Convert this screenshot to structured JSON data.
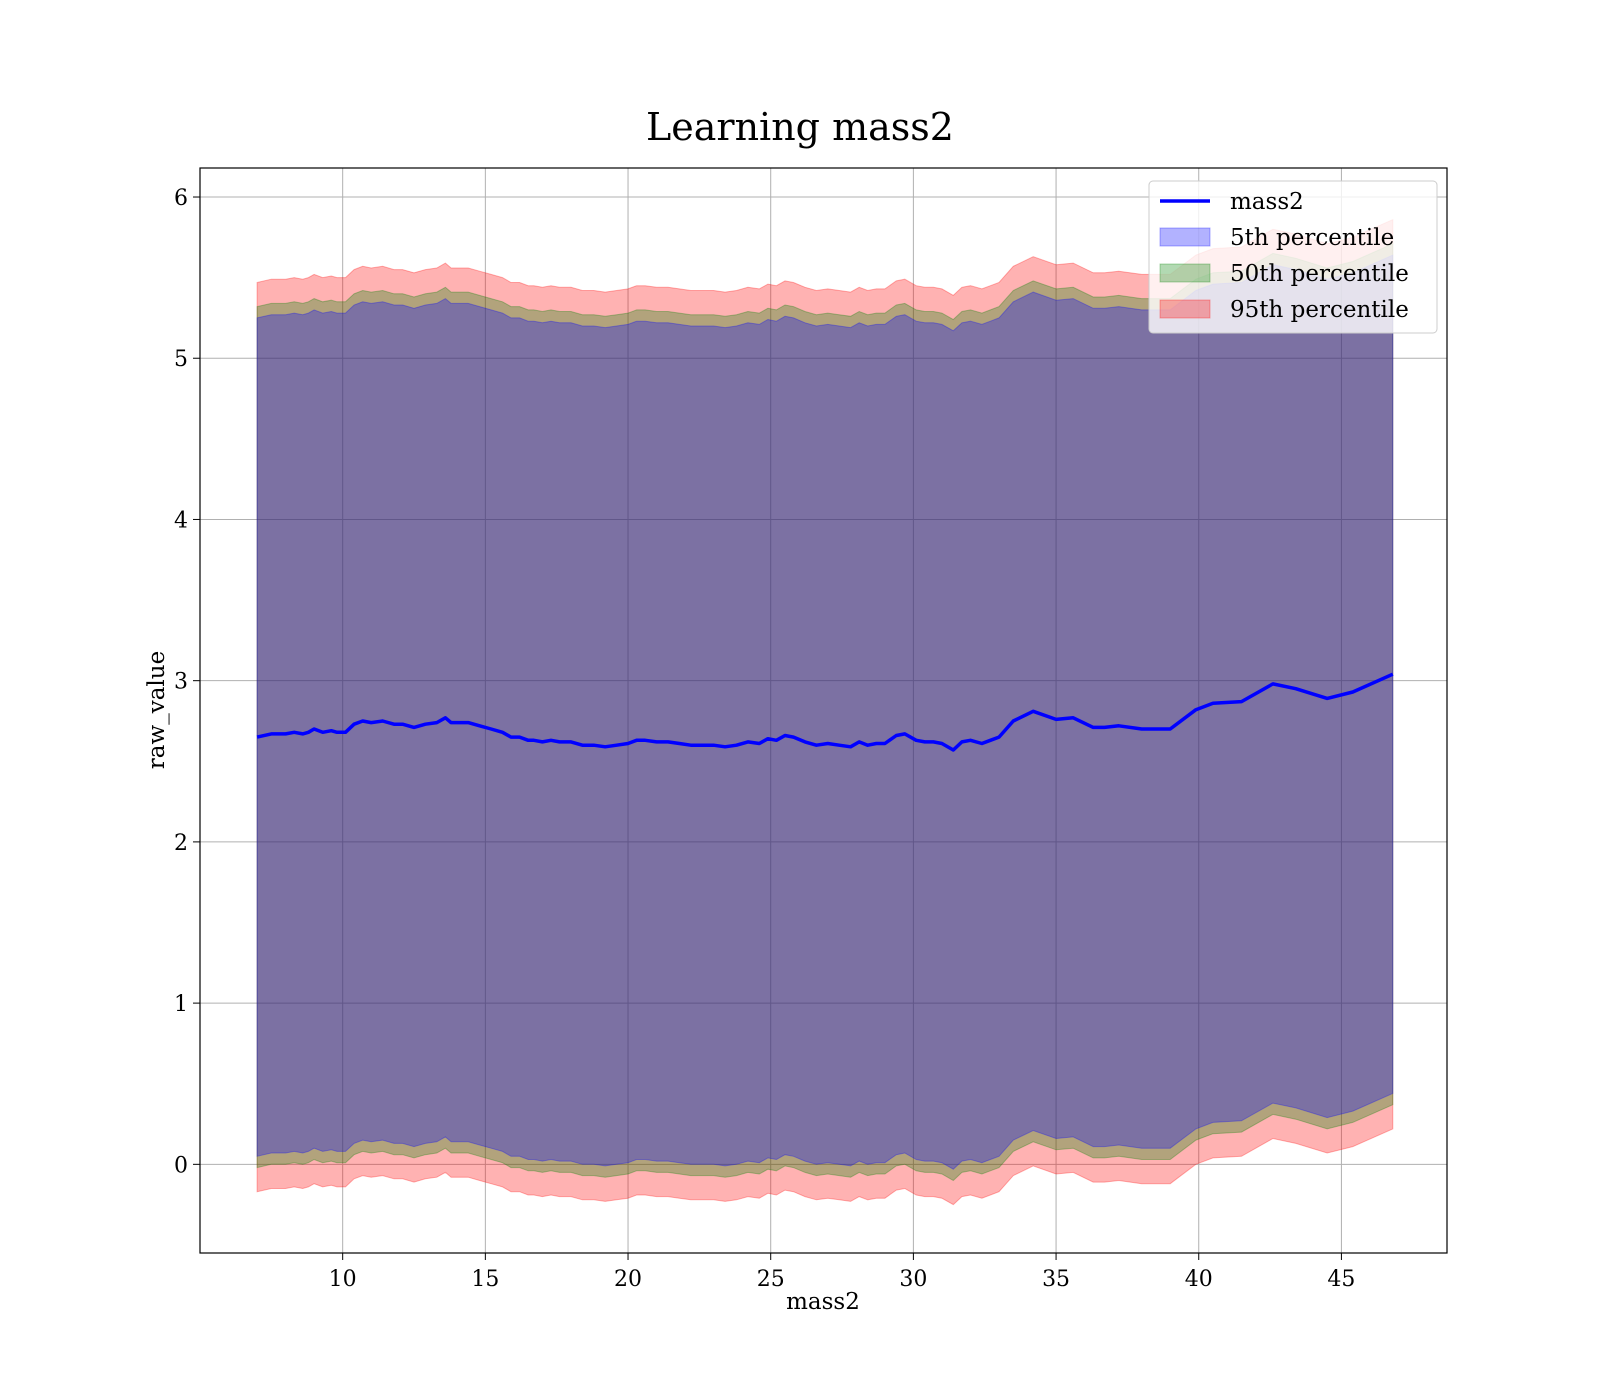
{
  "chart_data": {
    "type": "line",
    "title": "Learning mass2",
    "xlabel": "mass2",
    "ylabel": "raw_value",
    "xlim": [
      5.0,
      48.7
    ],
    "ylim": [
      -0.55,
      6.18
    ],
    "xticks": [
      10,
      15,
      20,
      25,
      30,
      35,
      40,
      45
    ],
    "yticks": [
      0,
      1,
      2,
      3,
      4,
      5,
      6
    ],
    "grid": true,
    "legend_position": "top-right",
    "colors": {
      "line": "#0000ff",
      "band_5": "#0000ff",
      "band_50": "#008000",
      "band_95": "#ff0000"
    },
    "x": [
      7.0,
      7.5,
      8.0,
      8.3,
      8.6,
      8.8,
      9.0,
      9.3,
      9.6,
      9.8,
      10.1,
      10.4,
      10.7,
      11.0,
      11.4,
      11.8,
      12.1,
      12.5,
      12.9,
      13.3,
      13.6,
      13.8,
      14.1,
      14.4,
      14.8,
      15.2,
      15.6,
      15.9,
      16.2,
      16.5,
      16.7,
      17.0,
      17.3,
      17.6,
      18.0,
      18.4,
      18.8,
      19.2,
      19.6,
      20.0,
      20.3,
      20.6,
      21.0,
      21.4,
      21.8,
      22.2,
      22.6,
      23.0,
      23.4,
      23.8,
      24.2,
      24.6,
      24.9,
      25.2,
      25.5,
      25.8,
      26.2,
      26.6,
      27.0,
      27.4,
      27.8,
      28.1,
      28.4,
      28.7,
      29.0,
      29.4,
      29.7,
      30.1,
      30.4,
      30.7,
      31.0,
      31.4,
      31.7,
      32.0,
      32.4,
      32.7,
      33.0,
      33.5,
      34.2,
      35.0,
      35.6,
      36.3,
      36.7,
      37.2,
      38.0,
      39.0,
      39.9,
      40.5,
      41.5,
      42.6,
      43.4,
      44.5,
      45.4,
      46.8
    ],
    "series": [
      {
        "name": "mass2",
        "values": [
          2.65,
          2.67,
          2.67,
          2.68,
          2.67,
          2.68,
          2.7,
          2.68,
          2.69,
          2.68,
          2.68,
          2.73,
          2.75,
          2.74,
          2.75,
          2.73,
          2.73,
          2.71,
          2.73,
          2.74,
          2.77,
          2.74,
          2.74,
          2.74,
          2.72,
          2.7,
          2.68,
          2.65,
          2.65,
          2.63,
          2.63,
          2.62,
          2.63,
          2.62,
          2.62,
          2.6,
          2.6,
          2.59,
          2.6,
          2.61,
          2.63,
          2.63,
          2.62,
          2.62,
          2.61,
          2.6,
          2.6,
          2.6,
          2.59,
          2.6,
          2.62,
          2.61,
          2.64,
          2.63,
          2.66,
          2.65,
          2.62,
          2.6,
          2.61,
          2.6,
          2.59,
          2.62,
          2.6,
          2.61,
          2.61,
          2.66,
          2.67,
          2.63,
          2.62,
          2.62,
          2.61,
          2.57,
          2.62,
          2.63,
          2.61,
          2.63,
          2.65,
          2.75,
          2.81,
          2.76,
          2.77,
          2.71,
          2.71,
          2.72,
          2.7,
          2.7,
          2.82,
          2.86,
          2.87,
          2.98,
          2.95,
          2.89,
          2.93,
          3.04
        ]
      },
      {
        "name": "5th percentile",
        "type": "band",
        "half_width": 2.6
      },
      {
        "name": "50th percentile",
        "type": "band",
        "half_width": 2.67
      },
      {
        "name": "95th percentile",
        "type": "band",
        "half_width": 2.82
      }
    ]
  }
}
